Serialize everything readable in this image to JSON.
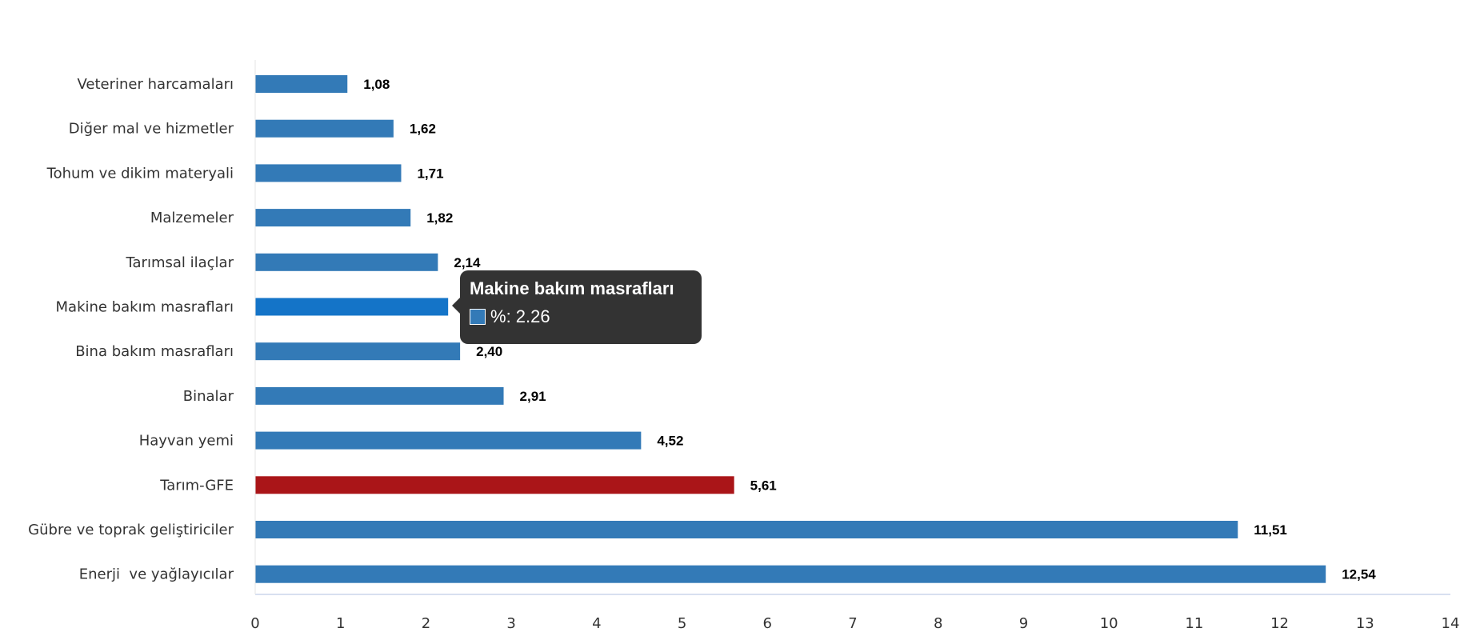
{
  "chart_data": {
    "type": "bar",
    "orientation": "horizontal",
    "categories": [
      "Veteriner harcamaları",
      "Diğer mal ve hizmetler",
      "Tohum ve dikim materyali",
      "Malzemeler",
      "Tarımsal ilaçlar",
      "Makine bakım masrafları",
      "Bina bakım masrafları",
      "Binalar",
      "Hayvan yemi",
      "Tarım-GFE",
      "Gübre ve toprak geliştiriciler",
      "Enerji  ve yağlayıcılar"
    ],
    "values": [
      1.08,
      1.62,
      1.71,
      1.82,
      2.14,
      2.26,
      2.4,
      2.91,
      4.52,
      5.61,
      11.51,
      12.54
    ],
    "data_labels": [
      "1,08",
      "1,62",
      "1,71",
      "1,82",
      "2,14",
      "2,26",
      "2,40",
      "2,91",
      "4,52",
      "5,61",
      "11,51",
      "12,54"
    ],
    "xlim": [
      0,
      14
    ],
    "xticks": [
      0,
      1,
      2,
      3,
      4,
      5,
      6,
      7,
      8,
      9,
      10,
      11,
      12,
      13,
      14
    ],
    "title": "",
    "xlabel": "",
    "ylabel": "",
    "grid": false,
    "legend": "none",
    "colors": {
      "default": "#337ab7",
      "hover": "#1474c8",
      "highlight": "#aa1518"
    },
    "highlight_category": "Tarım-GFE",
    "hover_category": "Makine bakım masrafları"
  },
  "tooltip": {
    "title": "Makine bakım masrafları",
    "series_label": "%",
    "value": "2.26"
  }
}
